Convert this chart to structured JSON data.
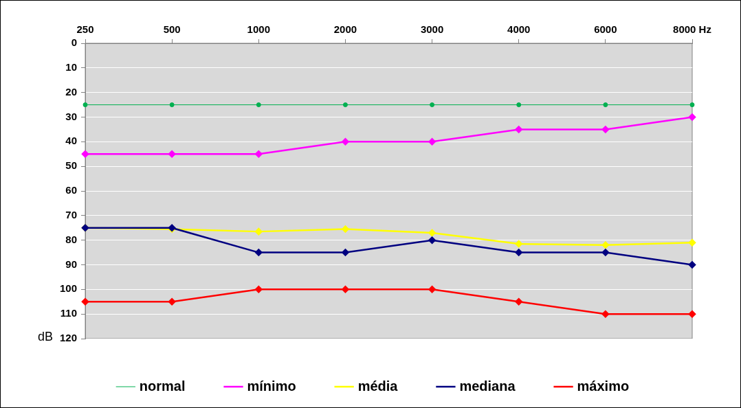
{
  "chart_data": {
    "type": "line",
    "ylabel": "dB",
    "categories": [
      "250",
      "500",
      "1000",
      "2000",
      "3000",
      "4000",
      "6000",
      "8000 Hz"
    ],
    "series": [
      {
        "name": "normal",
        "color": "#00b050",
        "marker": "circle",
        "values": [
          25,
          25,
          25,
          25,
          25,
          25,
          25,
          25
        ]
      },
      {
        "name": "mínimo",
        "color": "#ff00ff",
        "values": [
          45,
          45,
          45,
          40,
          40,
          35,
          35,
          30
        ]
      },
      {
        "name": "média",
        "color": "#ffff00",
        "values": [
          75,
          75.5,
          76.5,
          75.5,
          77,
          81.5,
          82,
          81
        ]
      },
      {
        "name": "mediana",
        "color": "#000080",
        "values": [
          75,
          75,
          85,
          85,
          80,
          85,
          85,
          90
        ]
      },
      {
        "name": "máximo",
        "color": "#ff0000",
        "values": [
          105,
          105,
          100,
          100,
          100,
          105,
          110,
          110
        ]
      }
    ],
    "ylim": [
      120,
      0
    ],
    "yticks": [
      0,
      10,
      20,
      30,
      40,
      50,
      60,
      70,
      80,
      90,
      100,
      110,
      120
    ],
    "grid": "y",
    "legend": "bottom",
    "marker": "diamond"
  }
}
